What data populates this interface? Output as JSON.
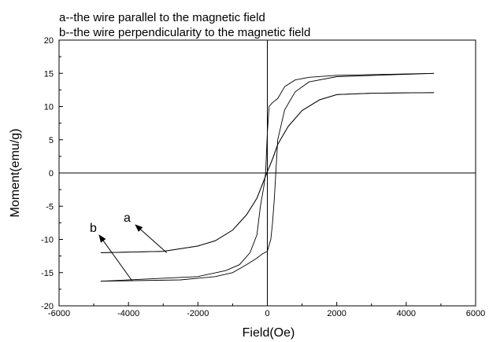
{
  "chart_data": {
    "type": "line",
    "title": "",
    "xlabel": "Field(Oe)",
    "ylabel": "Moment(emu/g)",
    "xlim": [
      -6000,
      6000
    ],
    "ylim": [
      -20,
      20
    ],
    "x_ticks": [
      -6000,
      -4000,
      -2000,
      0,
      2000,
      4000,
      6000
    ],
    "y_ticks": [
      -20,
      -15,
      -10,
      -5,
      0,
      5,
      10,
      15,
      20
    ],
    "zero_lines": true,
    "grid": false,
    "annotations": {
      "note_a": "a--the wire parallel to the magnetic field",
      "note_b": "b--the wire perpendicularity to the magnetic field",
      "arrow_a_label": "a",
      "arrow_b_label": "b"
    },
    "series": [
      {
        "name": "a",
        "x": [
          -4800,
          -3000,
          -2000,
          -1500,
          -1000,
          -600,
          -300,
          -150,
          0,
          150,
          300,
          600,
          1000,
          1500,
          2000,
          3000,
          4800
        ],
        "y": [
          -12.0,
          -11.8,
          -11.0,
          -10.2,
          -8.6,
          -6.3,
          -3.8,
          -1.8,
          0.2,
          2.1,
          4.3,
          7.0,
          9.4,
          11.0,
          11.8,
          12.0,
          12.1
        ],
        "x_return": [
          4800,
          3000,
          2000,
          1500,
          1000,
          600,
          300,
          150,
          0,
          -150,
          -300,
          -600,
          -1000,
          -1500,
          -2000,
          -3000,
          -4800
        ],
        "y_return": [
          12.1,
          12.0,
          11.8,
          11.0,
          9.4,
          7.0,
          4.3,
          2.1,
          0.2,
          -1.8,
          -3.8,
          -6.3,
          -8.6,
          -10.2,
          -11.0,
          -11.8,
          -12.0
        ]
      },
      {
        "name": "b",
        "x": [
          -4800,
          -2500,
          -1500,
          -1000,
          -600,
          -300,
          -150,
          0,
          100,
          150,
          200,
          300,
          500,
          800,
          1200,
          2000,
          4800
        ],
        "y": [
          -16.3,
          -16.1,
          -15.6,
          -15.0,
          -13.8,
          -12.8,
          -12.2,
          -11.8,
          -10.0,
          -7.5,
          -4.0,
          5.0,
          9.5,
          12.2,
          13.7,
          14.5,
          15.0
        ],
        "x_return": [
          4800,
          2000,
          1200,
          800,
          500,
          300,
          150,
          50,
          0,
          -50,
          -100,
          -200,
          -300,
          -500,
          -800,
          -1200,
          -2000,
          -4800
        ],
        "y_return": [
          15.0,
          14.7,
          14.4,
          14.0,
          13.0,
          11.2,
          10.6,
          10.0,
          6.0,
          0.0,
          -2.0,
          -5.0,
          -9.3,
          -12.0,
          -13.8,
          -14.7,
          -15.6,
          -16.3
        ]
      }
    ]
  }
}
